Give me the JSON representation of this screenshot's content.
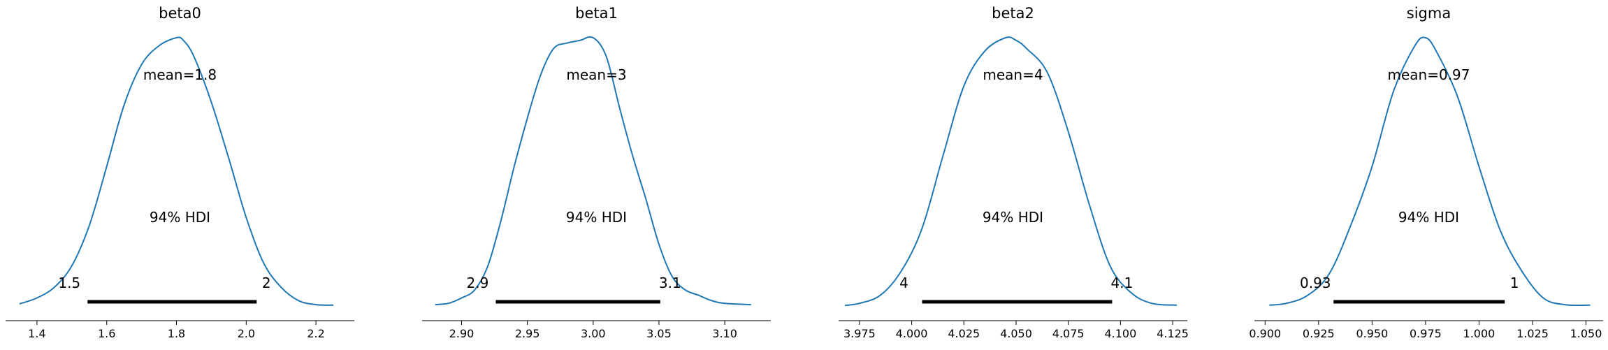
{
  "chart_data": [
    {
      "type": "area",
      "title": "beta0",
      "mean_label": "mean=1.8",
      "hdi_label": "94% HDI",
      "hdi_low_label": "1.5",
      "hdi_high_label": "2",
      "hdi": [
        1.545,
        2.03
      ],
      "xlim": [
        1.31,
        2.31
      ],
      "ticks": [
        1.4,
        1.6,
        1.8,
        2.0,
        2.2
      ],
      "tick_labels": [
        "1.4",
        "1.6",
        "1.8",
        "2.0",
        "2.2"
      ],
      "x": [
        1.35,
        1.4,
        1.45,
        1.5,
        1.55,
        1.6,
        1.65,
        1.7,
        1.75,
        1.8,
        1.82,
        1.85,
        1.9,
        1.95,
        2.0,
        2.05,
        2.1,
        2.15,
        2.2,
        2.25
      ],
      "density": [
        0.008,
        0.03,
        0.07,
        0.15,
        0.3,
        0.52,
        0.75,
        0.9,
        0.97,
        1.0,
        0.99,
        0.93,
        0.76,
        0.55,
        0.33,
        0.16,
        0.07,
        0.02,
        0.005,
        0.003
      ]
    },
    {
      "type": "area",
      "title": "beta1",
      "mean_label": "mean=3",
      "hdi_label": "94% HDI",
      "hdi_low_label": "2.9",
      "hdi_high_label": "3.1",
      "hdi": [
        2.926,
        3.051
      ],
      "xlim": [
        2.87,
        3.135
      ],
      "ticks": [
        2.9,
        2.95,
        3.0,
        3.05,
        3.1
      ],
      "tick_labels": [
        "2.90",
        "2.95",
        "3.00",
        "3.05",
        "3.10"
      ],
      "x": [
        2.88,
        2.89,
        2.9,
        2.91,
        2.92,
        2.93,
        2.94,
        2.95,
        2.96,
        2.97,
        2.98,
        2.99,
        3.0,
        3.01,
        3.02,
        3.03,
        3.04,
        3.05,
        3.06,
        3.07,
        3.08,
        3.09,
        3.1,
        3.12
      ],
      "density": [
        0.005,
        0.01,
        0.03,
        0.06,
        0.15,
        0.32,
        0.52,
        0.7,
        0.86,
        0.96,
        0.98,
        0.99,
        1.0,
        0.93,
        0.74,
        0.56,
        0.4,
        0.23,
        0.11,
        0.06,
        0.04,
        0.02,
        0.01,
        0.005
      ]
    },
    {
      "type": "area",
      "title": "beta2",
      "mean_label": "mean=4",
      "hdi_label": "94% HDI",
      "hdi_low_label": "4",
      "hdi_high_label": "4.1",
      "hdi": [
        4.005,
        4.096
      ],
      "xlim": [
        3.965,
        4.132
      ],
      "ticks": [
        3.975,
        4.0,
        4.025,
        4.05,
        4.075,
        4.1,
        4.125
      ],
      "tick_labels": [
        "3.975",
        "4.000",
        "4.025",
        "4.050",
        "4.075",
        "4.100",
        "4.125"
      ],
      "x": [
        3.968,
        3.975,
        3.985,
        3.995,
        4.005,
        4.015,
        4.025,
        4.035,
        4.045,
        4.05,
        4.055,
        4.065,
        4.075,
        4.085,
        4.095,
        4.105,
        4.115,
        4.127
      ],
      "density": [
        0.002,
        0.01,
        0.04,
        0.13,
        0.29,
        0.56,
        0.82,
        0.95,
        1.0,
        0.99,
        0.96,
        0.87,
        0.65,
        0.38,
        0.15,
        0.05,
        0.01,
        0.003
      ]
    },
    {
      "type": "area",
      "title": "sigma",
      "mean_label": "mean=0.97",
      "hdi_label": "94% HDI",
      "hdi_low_label": "0.93",
      "hdi_high_label": "1",
      "hdi": [
        0.932,
        1.012
      ],
      "xlim": [
        0.895,
        1.058
      ],
      "ticks": [
        0.9,
        0.925,
        0.95,
        0.975,
        1.0,
        1.025,
        1.05
      ],
      "tick_labels": [
        "0.900",
        "0.925",
        "0.950",
        "0.975",
        "1.000",
        "1.025",
        "1.050"
      ],
      "x": [
        0.902,
        0.91,
        0.92,
        0.93,
        0.94,
        0.95,
        0.96,
        0.97,
        0.975,
        0.98,
        0.99,
        1.0,
        1.01,
        1.02,
        1.03,
        1.04,
        1.052
      ],
      "density": [
        0.003,
        0.01,
        0.04,
        0.12,
        0.3,
        0.52,
        0.8,
        0.97,
        1.0,
        0.95,
        0.78,
        0.52,
        0.28,
        0.13,
        0.03,
        0.005,
        0.003
      ]
    }
  ],
  "colors": {
    "curve": "#1f77b4",
    "hdi_bar": "#000000",
    "axis": "#000000"
  }
}
